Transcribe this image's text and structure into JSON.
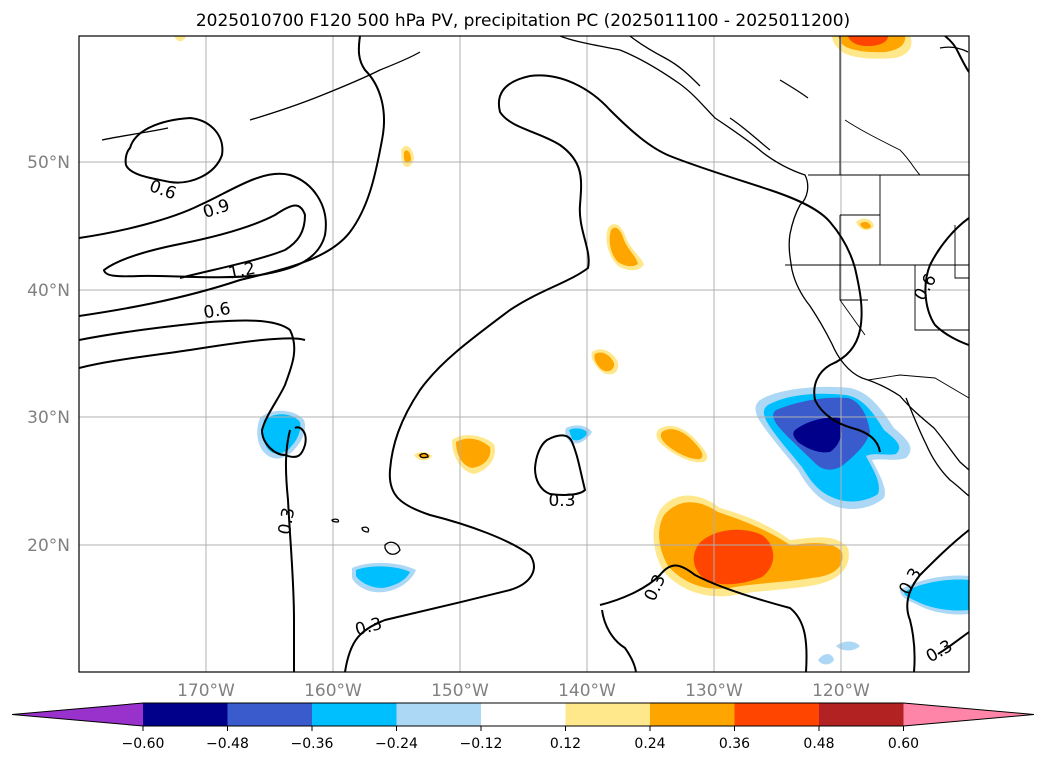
{
  "title": "2025010700 F120 500 hPa PV, precipitation PC (2025011100 - 2025011200)",
  "map": {
    "lat_ticks": [
      "50°N",
      "40°N",
      "30°N",
      "20°N"
    ],
    "lon_ticks": [
      "170°W",
      "160°W",
      "150°W",
      "140°W",
      "130°W",
      "120°W"
    ],
    "contour_labels": [
      "0.6",
      "0.9",
      "1.2",
      "0.6",
      "0.3",
      "0.3",
      "0.3",
      "0.3",
      "0.6",
      "0.3",
      "0.3"
    ]
  },
  "colorbar": {
    "ticks": [
      "−0.60",
      "−0.48",
      "−0.36",
      "−0.24",
      "−0.12",
      "0.12",
      "0.24",
      "0.36",
      "0.48",
      "0.60"
    ],
    "colors": [
      "#9932cc",
      "#00008b",
      "#3a5bcc",
      "#00bfff",
      "#add8f5",
      "#ffffff",
      "#ffe88c",
      "#ffa500",
      "#ff4500",
      "#b22222",
      "#ff85a8"
    ]
  },
  "chart_data": {
    "type": "heatmap",
    "title": "2025010700 F120 500 hPa PV, precipitation PC (2025011100 - 2025011200)",
    "lat_range": [
      10,
      60
    ],
    "lon_range": [
      -180,
      -110
    ],
    "contour_levels": [
      0.3,
      0.6,
      0.9,
      1.2
    ],
    "colorbar_levels": [
      -0.6,
      -0.48,
      -0.36,
      -0.24,
      -0.12,
      0.12,
      0.24,
      0.36,
      0.48,
      0.6
    ]
  }
}
